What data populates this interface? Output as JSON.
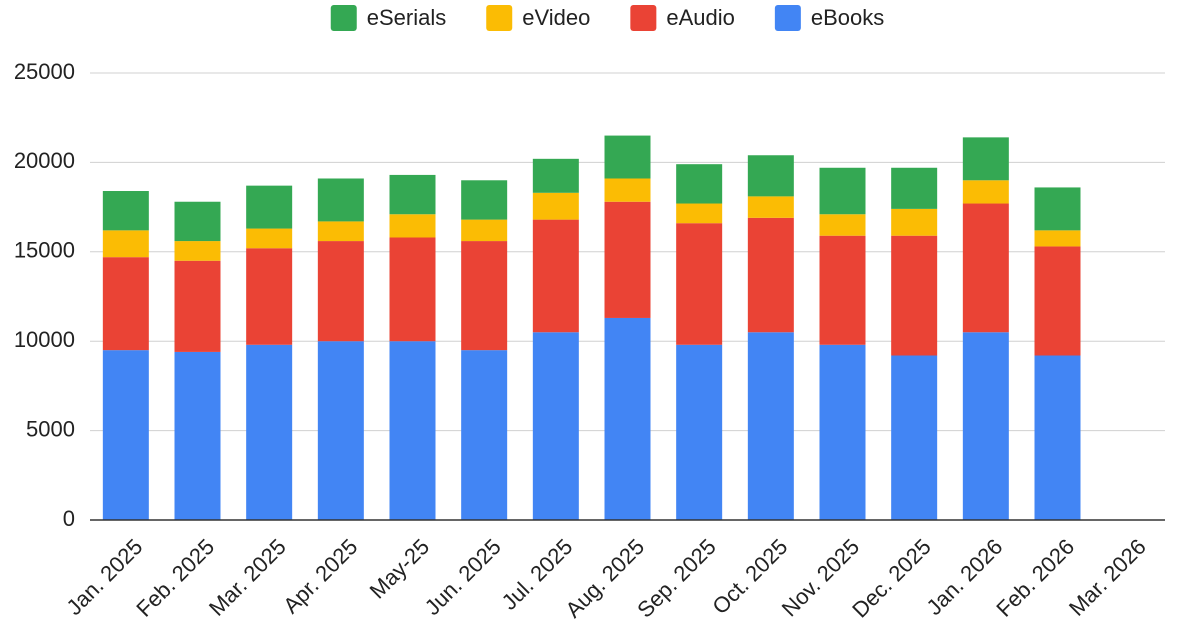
{
  "chart_data": {
    "type": "stacked_bar",
    "categories": [
      "Jan. 2025",
      "Feb. 2025",
      "Mar. 2025",
      "Apr. 2025",
      "May-25",
      "Jun. 2025",
      "Jul. 2025",
      "Aug. 2025",
      "Sep. 2025",
      "Oct. 2025",
      "Nov. 2025",
      "Dec. 2025",
      "Jan. 2026",
      "Feb. 2026",
      "Mar. 2026"
    ],
    "series": [
      {
        "name": "eSerials",
        "color": "#34a853",
        "values": [
          2200,
          2200,
          2400,
          2400,
          2200,
          2200,
          1900,
          2400,
          2200,
          2300,
          2600,
          2300,
          2400,
          2400,
          null
        ]
      },
      {
        "name": "eVideo",
        "color": "#fbbc04",
        "values": [
          1500,
          1100,
          1100,
          1100,
          1300,
          1200,
          1500,
          1300,
          1100,
          1200,
          1200,
          1500,
          1300,
          900,
          null
        ]
      },
      {
        "name": "eAudio",
        "color": "#ea4335",
        "values": [
          5200,
          5100,
          5400,
          5600,
          5800,
          6100,
          6300,
          6500,
          6800,
          6400,
          6100,
          6700,
          7200,
          6100,
          null
        ]
      },
      {
        "name": "eBooks",
        "color": "#4285f4",
        "values": [
          9500,
          9400,
          9800,
          10000,
          10000,
          9500,
          10500,
          11300,
          9800,
          10500,
          9800,
          9200,
          10500,
          9200,
          null
        ]
      }
    ],
    "ylim": [
      0,
      25000
    ],
    "yticks": [
      0,
      5000,
      10000,
      15000,
      20000,
      25000
    ],
    "grid": true,
    "legend": "top"
  }
}
